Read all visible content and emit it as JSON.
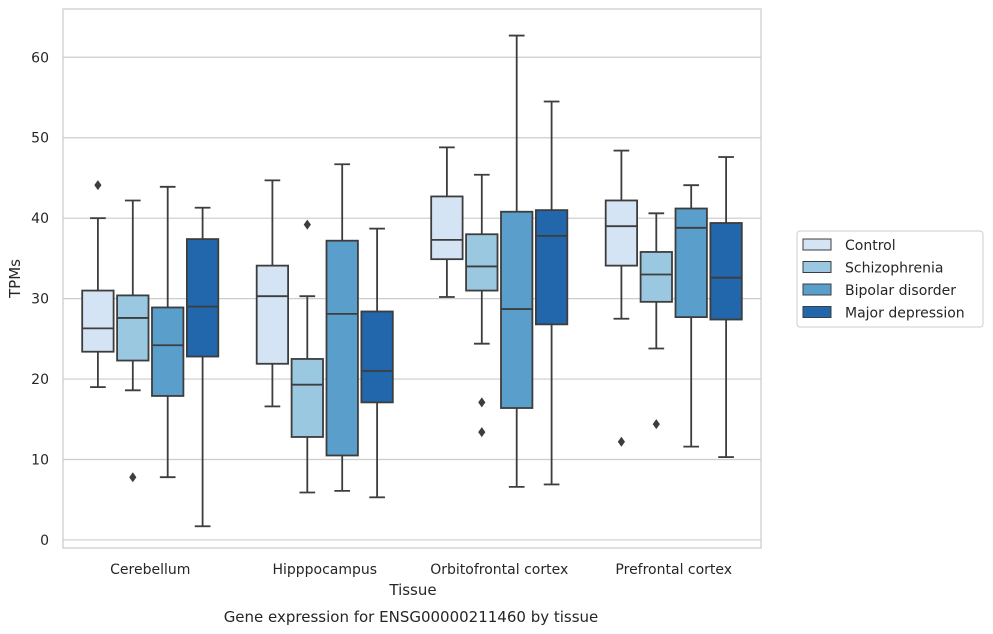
{
  "caption": "Gene expression for ENSG00000211460 by tissue",
  "chart_data": {
    "type": "box",
    "xlabel": "Tissue",
    "ylabel": "TPMs",
    "ylim": [
      -1,
      66
    ],
    "yticks": [
      0,
      10,
      20,
      30,
      40,
      50,
      60
    ],
    "grid": "horizontal",
    "legend_position": "right",
    "categories": [
      "Cerebellum",
      "Hipppocampus",
      "Orbitofrontal cortex",
      "Prefrontal cortex"
    ],
    "series": [
      {
        "name": "Control",
        "color": "#d4e4f4",
        "boxes": [
          {
            "whisker_low": 19.0,
            "q1": 23.4,
            "median": 26.3,
            "q3": 31.0,
            "whisker_high": 40.0,
            "outliers": [
              44.1
            ]
          },
          {
            "whisker_low": 16.6,
            "q1": 21.9,
            "median": 30.3,
            "q3": 34.1,
            "whisker_high": 44.7,
            "outliers": []
          },
          {
            "whisker_low": 30.2,
            "q1": 34.9,
            "median": 37.3,
            "q3": 42.7,
            "whisker_high": 48.8,
            "outliers": []
          },
          {
            "whisker_low": 27.5,
            "q1": 34.1,
            "median": 39.0,
            "q3": 42.2,
            "whisker_high": 48.4,
            "outliers": [
              12.2
            ]
          }
        ]
      },
      {
        "name": "Schizophrenia",
        "color": "#9ac8e0",
        "boxes": [
          {
            "whisker_low": 18.6,
            "q1": 22.3,
            "median": 27.6,
            "q3": 30.4,
            "whisker_high": 42.2,
            "outliers": [
              7.8
            ]
          },
          {
            "whisker_low": 5.9,
            "q1": 12.8,
            "median": 19.3,
            "q3": 22.5,
            "whisker_high": 30.3,
            "outliers": [
              39.2
            ]
          },
          {
            "whisker_low": 24.4,
            "q1": 31.0,
            "median": 34.0,
            "q3": 38.0,
            "whisker_high": 45.4,
            "outliers": [
              17.1,
              13.4
            ]
          },
          {
            "whisker_low": 23.8,
            "q1": 29.6,
            "median": 33.0,
            "q3": 35.8,
            "whisker_high": 40.6,
            "outliers": [
              14.4
            ]
          }
        ]
      },
      {
        "name": "Bipolar disorder",
        "color": "#5a9ecb",
        "boxes": [
          {
            "whisker_low": 7.8,
            "q1": 17.9,
            "median": 24.2,
            "q3": 28.9,
            "whisker_high": 43.9,
            "outliers": []
          },
          {
            "whisker_low": 6.1,
            "q1": 10.5,
            "median": 28.1,
            "q3": 37.2,
            "whisker_high": 46.7,
            "outliers": []
          },
          {
            "whisker_low": 6.6,
            "q1": 16.4,
            "median": 28.7,
            "q3": 40.8,
            "whisker_high": 62.7,
            "outliers": []
          },
          {
            "whisker_low": 11.6,
            "q1": 27.7,
            "median": 38.8,
            "q3": 41.2,
            "whisker_high": 44.1,
            "outliers": []
          }
        ]
      },
      {
        "name": "Major depression",
        "color": "#2266ac",
        "boxes": [
          {
            "whisker_low": 1.7,
            "q1": 22.8,
            "median": 29.0,
            "q3": 37.4,
            "whisker_high": 41.3,
            "outliers": []
          },
          {
            "whisker_low": 5.3,
            "q1": 17.1,
            "median": 21.0,
            "q3": 28.4,
            "whisker_high": 38.7,
            "outliers": []
          },
          {
            "whisker_low": 6.9,
            "q1": 26.8,
            "median": 37.8,
            "q3": 41.0,
            "whisker_high": 54.5,
            "outliers": []
          },
          {
            "whisker_low": 10.3,
            "q1": 27.4,
            "median": 32.6,
            "q3": 39.4,
            "whisker_high": 47.6,
            "outliers": []
          }
        ]
      }
    ]
  }
}
